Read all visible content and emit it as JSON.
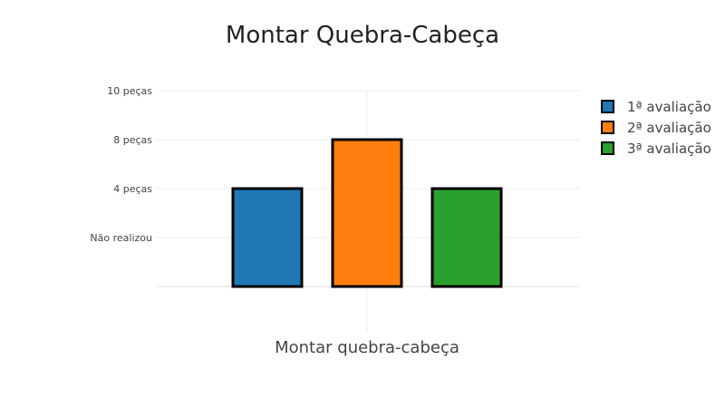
{
  "chart_data": {
    "type": "bar",
    "title": "Montar Quebra-Cabeça",
    "xlabel": "",
    "ylabel": "",
    "categories": [
      "Montar quebra-cabeça"
    ],
    "y_ticks": [
      {
        "value": 1,
        "label": "Não realizou"
      },
      {
        "value": 2,
        "label": "4 peças"
      },
      {
        "value": 3,
        "label": "8 peças"
      },
      {
        "value": 4,
        "label": "10 peças"
      }
    ],
    "ylim": [
      0,
      4
    ],
    "grid": true,
    "legend_position": "top-right",
    "series": [
      {
        "name": "1ª avaliação",
        "values": [
          2
        ],
        "color": "#1f77b4"
      },
      {
        "name": "2ª avaliação",
        "values": [
          3
        ],
        "color": "#ff7f0e"
      },
      {
        "name": "3ª avaliação",
        "values": [
          2
        ],
        "color": "#2ca02c"
      }
    ]
  }
}
